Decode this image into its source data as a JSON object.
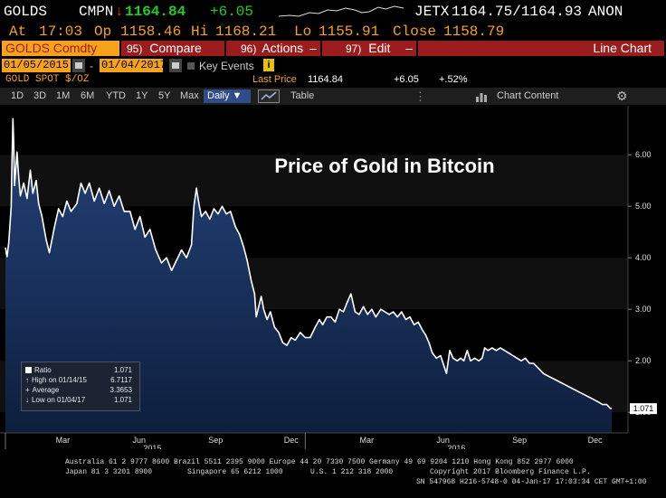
{
  "header": {
    "ticker": "GOLDS",
    "exchange": "CMPN",
    "arrow": "↓",
    "last": "1164.84",
    "change": "+6.05",
    "quote_src": "JETX",
    "bid_ask": "1164.75/1164.93",
    "quote_tag": "ANON",
    "time_label": "At",
    "time": "17:03",
    "open_label": "Op",
    "open": "1158.46",
    "high_label": "Hi",
    "high": "1168.21",
    "low_label": "Lo",
    "low": "1155.91",
    "close_label": "Close",
    "close": "1158.79"
  },
  "toolbar": {
    "security": "GOLDS Comdty",
    "compare_num": "95)",
    "compare": "Compare",
    "actions_num": "96)",
    "actions": "Actions",
    "edit_num": "97)",
    "edit": "Edit",
    "chart_type": "Line Chart"
  },
  "dates": {
    "start": "01/05/2015",
    "end": "01/04/2017",
    "key_events": "Key Events",
    "info_badge": "i"
  },
  "info": {
    "security_desc": "GOLD SPOT $/OZ",
    "last_price_label": "Last Price",
    "last_price": "1164.84",
    "change": "+6.05",
    "pct_change": "+.52%"
  },
  "periods": {
    "items": [
      "1D",
      "3D",
      "1M",
      "6M",
      "YTD",
      "1Y",
      "5Y",
      "Max"
    ],
    "frequency": "Daily ▼",
    "table": "Table",
    "chart_content": "Chart Content"
  },
  "colors": {
    "accent": "#f7a21b",
    "red": "#e62e2e",
    "green": "#22cc22",
    "toolbar_red": "#9b1c1c",
    "line": "#ffffff",
    "fill": "#17315c"
  },
  "chart_data": {
    "type": "area",
    "title": "Price of Gold in Bitcoin",
    "xlabel": "",
    "ylabel": "",
    "x_ticks": [
      "Mar",
      "Jun",
      "Sep",
      "Dec",
      "Mar",
      "Jun",
      "Sep",
      "Dec"
    ],
    "year_labels": [
      "2015",
      "2016"
    ],
    "y_ticks": [
      "1.00",
      "2.00",
      "3.00",
      "4.00",
      "5.00",
      "6.00"
    ],
    "ylim": [
      0.6,
      6.95
    ],
    "grid": false,
    "series": [
      {
        "name": "Ratio",
        "points": [
          [
            "2015-01-05",
            4.2
          ],
          [
            "2015-01-07",
            4.02
          ],
          [
            "2015-01-09",
            4.3
          ],
          [
            "2015-01-12",
            5.0
          ],
          [
            "2015-01-13",
            5.9
          ],
          [
            "2015-01-14",
            6.7
          ],
          [
            "2015-01-15",
            6.2
          ],
          [
            "2015-01-16",
            5.4
          ],
          [
            "2015-01-19",
            6.05
          ],
          [
            "2015-01-21",
            5.55
          ],
          [
            "2015-01-23",
            5.2
          ],
          [
            "2015-01-27",
            5.45
          ],
          [
            "2015-01-31",
            5.15
          ],
          [
            "2015-02-04",
            5.7
          ],
          [
            "2015-02-07",
            5.25
          ],
          [
            "2015-02-11",
            5.5
          ],
          [
            "2015-02-14",
            5.05
          ],
          [
            "2015-02-18",
            4.8
          ],
          [
            "2015-02-23",
            4.35
          ],
          [
            "2015-02-27",
            4.1
          ],
          [
            "2015-03-05",
            4.6
          ],
          [
            "2015-03-10",
            4.95
          ],
          [
            "2015-03-15",
            4.8
          ],
          [
            "2015-03-20",
            5.1
          ],
          [
            "2015-03-25",
            4.9
          ],
          [
            "2015-04-01",
            5.05
          ],
          [
            "2015-04-06",
            5.45
          ],
          [
            "2015-04-11",
            5.25
          ],
          [
            "2015-04-16",
            5.45
          ],
          [
            "2015-04-22",
            5.1
          ],
          [
            "2015-04-28",
            5.35
          ],
          [
            "2015-05-04",
            5.05
          ],
          [
            "2015-05-10",
            5.3
          ],
          [
            "2015-05-16",
            5.0
          ],
          [
            "2015-05-22",
            5.2
          ],
          [
            "2015-05-28",
            4.9
          ],
          [
            "2015-06-04",
            4.9
          ],
          [
            "2015-06-10",
            4.55
          ],
          [
            "2015-06-16",
            4.8
          ],
          [
            "2015-06-22",
            4.4
          ],
          [
            "2015-06-28",
            4.55
          ],
          [
            "2015-07-05",
            4.15
          ],
          [
            "2015-07-12",
            3.9
          ],
          [
            "2015-07-18",
            4.0
          ],
          [
            "2015-07-24",
            3.75
          ],
          [
            "2015-07-30",
            3.95
          ],
          [
            "2015-08-05",
            4.15
          ],
          [
            "2015-08-11",
            4.0
          ],
          [
            "2015-08-17",
            4.25
          ],
          [
            "2015-08-20",
            5.0
          ],
          [
            "2015-08-23",
            5.35
          ],
          [
            "2015-08-26",
            5.05
          ],
          [
            "2015-08-29",
            4.8
          ],
          [
            "2015-09-03",
            4.9
          ],
          [
            "2015-09-08",
            4.75
          ],
          [
            "2015-09-13",
            4.95
          ],
          [
            "2015-09-18",
            4.85
          ],
          [
            "2015-09-23",
            5.0
          ],
          [
            "2015-09-28",
            4.85
          ],
          [
            "2015-10-03",
            4.9
          ],
          [
            "2015-10-09",
            4.6
          ],
          [
            "2015-10-14",
            4.45
          ],
          [
            "2015-10-19",
            4.2
          ],
          [
            "2015-10-23",
            3.95
          ],
          [
            "2015-10-28",
            3.55
          ],
          [
            "2015-11-01",
            3.3
          ],
          [
            "2015-11-03",
            2.85
          ],
          [
            "2015-11-06",
            3.05
          ],
          [
            "2015-11-09",
            3.25
          ],
          [
            "2015-11-12",
            3.0
          ],
          [
            "2015-11-16",
            2.8
          ],
          [
            "2015-11-20",
            2.95
          ],
          [
            "2015-11-25",
            2.65
          ],
          [
            "2015-11-30",
            2.55
          ],
          [
            "2015-12-05",
            2.35
          ],
          [
            "2015-12-10",
            2.3
          ],
          [
            "2015-12-15",
            2.45
          ],
          [
            "2015-12-20",
            2.4
          ],
          [
            "2015-12-26",
            2.55
          ],
          [
            "2016-01-01",
            2.45
          ],
          [
            "2016-01-07",
            2.45
          ],
          [
            "2016-01-13",
            2.65
          ],
          [
            "2016-01-18",
            2.8
          ],
          [
            "2016-01-22",
            2.7
          ],
          [
            "2016-01-27",
            2.85
          ],
          [
            "2016-02-01",
            2.85
          ],
          [
            "2016-02-06",
            2.75
          ],
          [
            "2016-02-11",
            3.0
          ],
          [
            "2016-02-16",
            2.95
          ],
          [
            "2016-02-21",
            3.15
          ],
          [
            "2016-02-25",
            3.3
          ],
          [
            "2016-03-01",
            2.95
          ],
          [
            "2016-03-06",
            2.9
          ],
          [
            "2016-03-11",
            3.05
          ],
          [
            "2016-03-16",
            2.9
          ],
          [
            "2016-03-21",
            3.0
          ],
          [
            "2016-03-26",
            2.85
          ],
          [
            "2016-04-01",
            3.0
          ],
          [
            "2016-04-06",
            2.95
          ],
          [
            "2016-04-11",
            2.9
          ],
          [
            "2016-04-16",
            2.95
          ],
          [
            "2016-04-21",
            2.85
          ],
          [
            "2016-04-26",
            2.95
          ],
          [
            "2016-05-01",
            2.8
          ],
          [
            "2016-05-06",
            2.85
          ],
          [
            "2016-05-11",
            2.7
          ],
          [
            "2016-05-16",
            2.75
          ],
          [
            "2016-05-21",
            2.6
          ],
          [
            "2016-05-25",
            2.5
          ],
          [
            "2016-05-29",
            2.35
          ],
          [
            "2016-06-02",
            2.15
          ],
          [
            "2016-06-07",
            2.05
          ],
          [
            "2016-06-12",
            2.1
          ],
          [
            "2016-06-16",
            1.9
          ],
          [
            "2016-06-19",
            1.75
          ],
          [
            "2016-06-23",
            2.2
          ],
          [
            "2016-06-27",
            2.05
          ],
          [
            "2016-07-02",
            2.0
          ],
          [
            "2016-07-06",
            2.05
          ],
          [
            "2016-07-10",
            2.0
          ],
          [
            "2016-07-14",
            2.2
          ],
          [
            "2016-07-18",
            2.0
          ],
          [
            "2016-07-23",
            2.05
          ],
          [
            "2016-07-28",
            2.0
          ],
          [
            "2016-08-01",
            2.05
          ],
          [
            "2016-08-04",
            2.25
          ],
          [
            "2016-08-08",
            2.2
          ],
          [
            "2016-08-13",
            2.25
          ],
          [
            "2016-08-18",
            2.2
          ],
          [
            "2016-08-23",
            2.25
          ],
          [
            "2016-08-28",
            2.2
          ],
          [
            "2016-09-02",
            2.15
          ],
          [
            "2016-09-07",
            2.1
          ],
          [
            "2016-09-12",
            2.05
          ],
          [
            "2016-09-17",
            2.0
          ],
          [
            "2016-09-22",
            2.05
          ],
          [
            "2016-09-27",
            1.95
          ],
          [
            "2016-10-02",
            1.95
          ],
          [
            "2016-10-08",
            1.85
          ],
          [
            "2016-10-14",
            1.75
          ],
          [
            "2016-10-20",
            1.7
          ],
          [
            "2016-10-26",
            1.65
          ],
          [
            "2016-11-01",
            1.6
          ],
          [
            "2016-11-07",
            1.55
          ],
          [
            "2016-11-13",
            1.5
          ],
          [
            "2016-11-19",
            1.45
          ],
          [
            "2016-11-25",
            1.4
          ],
          [
            "2016-12-01",
            1.35
          ],
          [
            "2016-12-07",
            1.3
          ],
          [
            "2016-12-13",
            1.25
          ],
          [
            "2016-12-19",
            1.2
          ],
          [
            "2016-12-24",
            1.15
          ],
          [
            "2016-12-29",
            1.15
          ],
          [
            "2017-01-02",
            1.08
          ],
          [
            "2017-01-04",
            1.071
          ]
        ]
      }
    ],
    "legend": {
      "position": "bottom-left",
      "rows": [
        {
          "label": "Ratio",
          "value": "1.071"
        },
        {
          "label": "High on 01/14/15",
          "value": "6.7117"
        },
        {
          "label": "Average",
          "value": "3.3653"
        },
        {
          "label": "Low on 01/04/17",
          "value": "1.071"
        }
      ]
    },
    "last_value_tag": "1.071"
  },
  "footer": {
    "line1": "Australia 61 2 9777 8600 Brazil 5511 2395 9000 Europe 44 20 7330 7500 Germany 49 69 9204 1210 Hong Kong 852 2977 6000",
    "line2a": "Japan 81 3 3201 8900",
    "line2b": "Singapore 65 6212 1000",
    "line2c": "U.S. 1 212 318 2000",
    "line2d": "Copyright 2017 Bloomberg Finance L.P.",
    "line3": "SN 547968 H216-5748-0 04-Jan-17 17:03:34 CET  GMT+1:00"
  }
}
